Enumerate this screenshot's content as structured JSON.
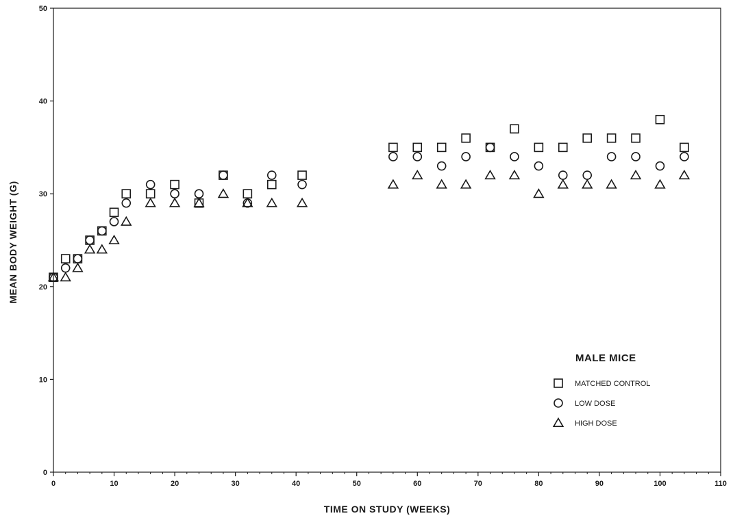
{
  "chart_data": {
    "type": "scatter",
    "xlabel": "TIME ON STUDY (WEEKS)",
    "ylabel": "MEAN BODY WEIGHT (G)",
    "xlim": [
      0,
      110
    ],
    "ylim": [
      0,
      50
    ],
    "xticks": [
      0,
      10,
      20,
      30,
      40,
      50,
      60,
      70,
      80,
      90,
      100,
      110
    ],
    "yticks": [
      0,
      10,
      20,
      30,
      40,
      50
    ],
    "grid": false,
    "legend_position": "bottom-right",
    "legend_title": "MALE MICE",
    "series": [
      {
        "name": "MATCHED CONTROL",
        "marker": "square",
        "x": [
          0,
          2,
          4,
          6,
          8,
          10,
          12,
          16,
          20,
          24,
          28,
          32,
          36,
          41,
          56,
          60,
          64,
          68,
          72,
          76,
          80,
          84,
          88,
          92,
          96,
          100,
          104
        ],
        "y": [
          21,
          23,
          23,
          25,
          26,
          28,
          30,
          30,
          31,
          29,
          32,
          30,
          31,
          32,
          35,
          35,
          35,
          36,
          35,
          37,
          35,
          35,
          36,
          36,
          36,
          38,
          35
        ]
      },
      {
        "name": "LOW DOSE",
        "marker": "circle",
        "x": [
          0,
          2,
          4,
          6,
          8,
          10,
          12,
          16,
          20,
          24,
          28,
          32,
          36,
          41,
          56,
          60,
          64,
          68,
          72,
          76,
          80,
          84,
          88,
          92,
          96,
          100,
          104
        ],
        "y": [
          21,
          22,
          23,
          25,
          26,
          27,
          29,
          31,
          30,
          30,
          32,
          29,
          32,
          31,
          34,
          34,
          33,
          34,
          35,
          34,
          33,
          32,
          32,
          34,
          34,
          33,
          34
        ]
      },
      {
        "name": "HIGH DOSE",
        "marker": "triangle",
        "x": [
          0,
          2,
          4,
          6,
          8,
          10,
          12,
          16,
          20,
          24,
          28,
          32,
          36,
          41,
          56,
          60,
          64,
          68,
          72,
          76,
          80,
          84,
          88,
          92,
          96,
          100,
          104
        ],
        "y": [
          21,
          21,
          22,
          24,
          24,
          25,
          27,
          29,
          29,
          29,
          30,
          29,
          29,
          29,
          31,
          32,
          31,
          31,
          32,
          32,
          30,
          31,
          31,
          31,
          32,
          31,
          32
        ]
      }
    ]
  }
}
